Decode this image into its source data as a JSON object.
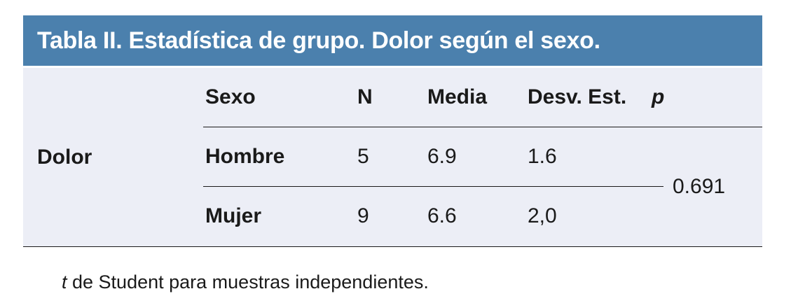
{
  "table": {
    "title": "Tabla II. Estadística de grupo. Dolor según el sexo.",
    "row_label": "Dolor",
    "columns": [
      "Sexo",
      "N",
      "Media",
      "Desv. Est.",
      "p"
    ],
    "rows": [
      {
        "sexo": "Hombre",
        "n": "5",
        "media": "6.9",
        "desv": "1.6"
      },
      {
        "sexo": "Mujer",
        "n": "9",
        "media": "6.6",
        "desv": "2,0"
      }
    ],
    "p_value": "0.691",
    "footnote_italic": "t",
    "footnote_rest": " de Student para muestras independientes."
  },
  "colors": {
    "header_bg": "#4b80ad",
    "body_bg": "#eceef6",
    "rule_line": "#1a1a1a",
    "title_text": "#ffffff"
  }
}
